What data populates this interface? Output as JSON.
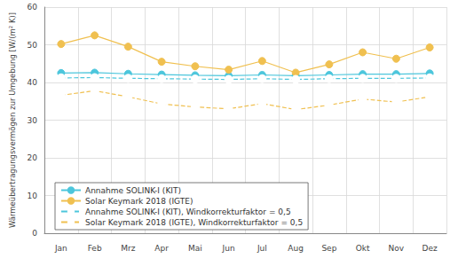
{
  "chart_data": {
    "type": "line",
    "y_label": "Wärmeübertragungsvermögen zur Umgebung [W/(m² K)]",
    "categories": [
      "Jan",
      "Feb",
      "Mrz",
      "Apr",
      "Mai",
      "Jun",
      "Jul",
      "Aug",
      "Sep",
      "Okt",
      "Nov",
      "Dez"
    ],
    "ylim": [
      0,
      60
    ],
    "yticks": [
      0,
      10,
      20,
      30,
      40,
      50,
      60
    ],
    "grid": true,
    "legend": "lower left",
    "series": [
      {
        "name": "Annahme SOLINK-I (KIT)",
        "color": "#4cc6dc",
        "marker": "circle",
        "line_style": "solid",
        "values": [
          42.5,
          42.6,
          42.3,
          42.1,
          41.9,
          41.8,
          42.0,
          41.8,
          42.0,
          42.2,
          42.2,
          42.4
        ]
      },
      {
        "name": "Solar Keymark 2018 (IGTE)",
        "color": "#f0c050",
        "marker": "circle",
        "line_style": "solid",
        "values": [
          50.2,
          52.5,
          49.5,
          45.5,
          44.3,
          43.4,
          45.7,
          42.6,
          44.8,
          48.0,
          46.3,
          49.3
        ]
      },
      {
        "name": "Annahme SOLINK-I (KIT), Windkorrekturfaktor = 0,5",
        "color": "#4cc6dc",
        "marker": "open_circle",
        "line_style": "dashed",
        "values": [
          41.2,
          41.3,
          41.1,
          41.0,
          40.9,
          40.8,
          41.0,
          40.8,
          41.0,
          41.1,
          41.1,
          41.2
        ]
      },
      {
        "name": "Solar Keymark 2018 (IGTE), Windkorrekturfaktor = 0,5",
        "color": "#f0c050",
        "marker": "open_circle",
        "line_style": "dashed",
        "values": [
          36.6,
          37.8,
          36.2,
          34.3,
          33.5,
          33.0,
          34.4,
          32.8,
          34.0,
          35.6,
          34.8,
          36.2
        ]
      }
    ]
  }
}
